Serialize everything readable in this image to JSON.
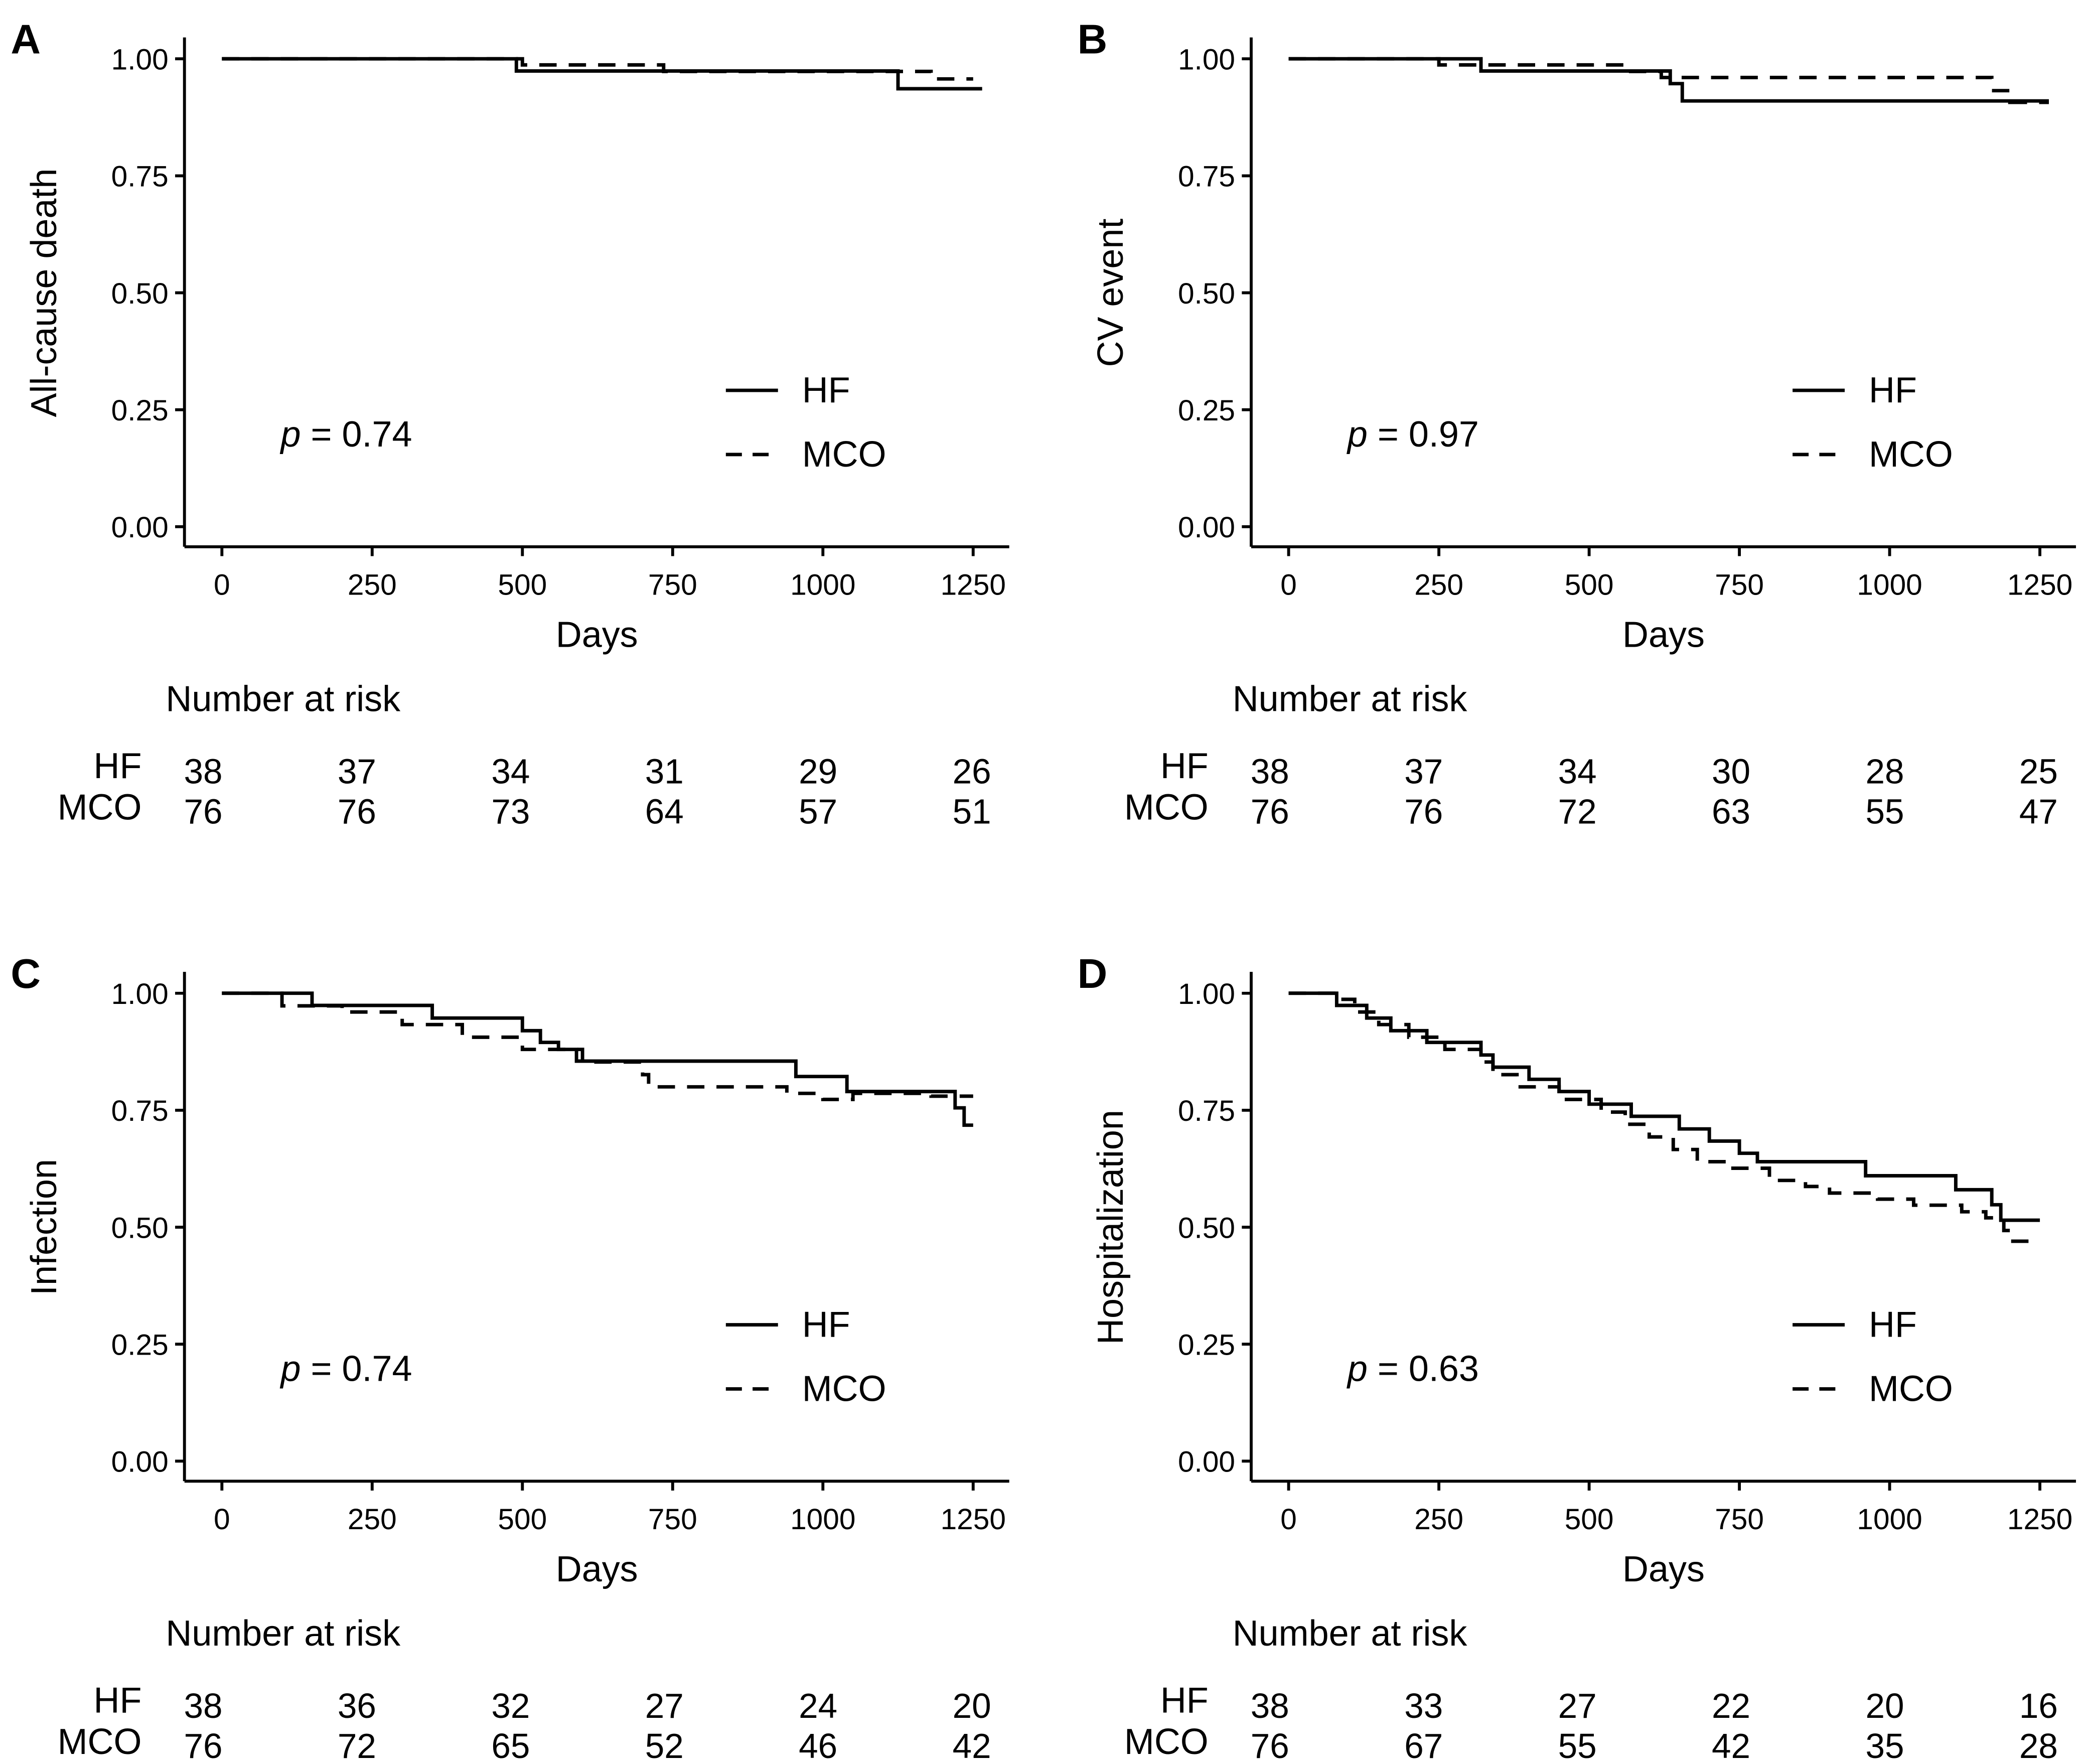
{
  "chart_data": [
    {
      "type": "line",
      "panel": "A",
      "ylabel": "All-cause death",
      "xlabel": "Days",
      "xlim": [
        0,
        1300
      ],
      "ylim": [
        0,
        1
      ],
      "x_ticks": [
        "0",
        "250",
        "500",
        "750",
        "1000",
        "1250"
      ],
      "y_ticks": [
        "0.00",
        "0.25",
        "0.50",
        "0.75",
        "1.00"
      ],
      "p_label": "p",
      "p_text": " = 0.74",
      "legend": [
        "HF",
        "MCO"
      ],
      "series": [
        {
          "name": "HF",
          "style": "solid",
          "points": [
            [
              0,
              1.0
            ],
            [
              490,
              1.0
            ],
            [
              490,
              0.974
            ],
            [
              1125,
              0.974
            ],
            [
              1125,
              0.936
            ],
            [
              1265,
              0.936
            ]
          ]
        },
        {
          "name": "MCO",
          "style": "dashed",
          "points": [
            [
              0,
              1.0
            ],
            [
              500,
              1.0
            ],
            [
              500,
              0.987
            ],
            [
              735,
              0.987
            ],
            [
              735,
              0.973
            ],
            [
              1180,
              0.973
            ],
            [
              1180,
              0.957
            ],
            [
              1250,
              0.957
            ]
          ]
        }
      ],
      "risk_table": {
        "title": "Number at risk",
        "rows": [
          {
            "label": "HF",
            "values": [
              "38",
              "37",
              "34",
              "31",
              "29",
              "26"
            ]
          },
          {
            "label": "MCO",
            "values": [
              "76",
              "76",
              "73",
              "64",
              "57",
              "51"
            ]
          }
        ]
      }
    },
    {
      "type": "line",
      "panel": "B",
      "ylabel": "CV event",
      "xlabel": "Days",
      "xlim": [
        0,
        1300
      ],
      "ylim": [
        0,
        1
      ],
      "x_ticks": [
        "0",
        "250",
        "500",
        "750",
        "1000",
        "1250"
      ],
      "y_ticks": [
        "0.00",
        "0.25",
        "0.50",
        "0.75",
        "1.00"
      ],
      "p_label": "p",
      "p_text": " = 0.97",
      "legend": [
        "HF",
        "MCO"
      ],
      "series": [
        {
          "name": "HF",
          "style": "solid",
          "points": [
            [
              0,
              1.0
            ],
            [
              320,
              1.0
            ],
            [
              320,
              0.974
            ],
            [
              635,
              0.974
            ],
            [
              635,
              0.947
            ],
            [
              655,
              0.947
            ],
            [
              655,
              0.91
            ],
            [
              1265,
              0.91
            ]
          ]
        },
        {
          "name": "MCO",
          "style": "dashed",
          "points": [
            [
              0,
              1.0
            ],
            [
              250,
              1.0
            ],
            [
              250,
              0.987
            ],
            [
              560,
              0.987
            ],
            [
              560,
              0.973
            ],
            [
              620,
              0.973
            ],
            [
              620,
              0.96
            ],
            [
              1170,
              0.96
            ],
            [
              1170,
              0.932
            ],
            [
              1200,
              0.932
            ],
            [
              1200,
              0.907
            ],
            [
              1265,
              0.907
            ]
          ]
        }
      ],
      "risk_table": {
        "title": "Number at risk",
        "rows": [
          {
            "label": "HF",
            "values": [
              "38",
              "37",
              "34",
              "30",
              "28",
              "25"
            ]
          },
          {
            "label": "MCO",
            "values": [
              "76",
              "76",
              "72",
              "63",
              "55",
              "47"
            ]
          }
        ]
      }
    },
    {
      "type": "line",
      "panel": "C",
      "ylabel": "Infection",
      "xlabel": "Days",
      "xlim": [
        0,
        1300
      ],
      "ylim": [
        0,
        1
      ],
      "x_ticks": [
        "0",
        "250",
        "500",
        "750",
        "1000",
        "1250"
      ],
      "y_ticks": [
        "0.00",
        "0.25",
        "0.50",
        "0.75",
        "1.00"
      ],
      "p_label": "p",
      "p_text": " = 0.74",
      "legend": [
        "HF",
        "MCO"
      ],
      "series": [
        {
          "name": "HF",
          "style": "solid",
          "points": [
            [
              0,
              1.0
            ],
            [
              150,
              1.0
            ],
            [
              150,
              0.974
            ],
            [
              350,
              0.974
            ],
            [
              350,
              0.947
            ],
            [
              500,
              0.947
            ],
            [
              500,
              0.92
            ],
            [
              530,
              0.92
            ],
            [
              530,
              0.895
            ],
            [
              560,
              0.895
            ],
            [
              560,
              0.88
            ],
            [
              590,
              0.88
            ],
            [
              590,
              0.855
            ],
            [
              955,
              0.855
            ],
            [
              955,
              0.822
            ],
            [
              1040,
              0.822
            ],
            [
              1040,
              0.79
            ],
            [
              1220,
              0.79
            ],
            [
              1220,
              0.755
            ],
            [
              1235,
              0.755
            ],
            [
              1235,
              0.718
            ],
            [
              1250,
              0.718
            ]
          ]
        },
        {
          "name": "MCO",
          "style": "dashed",
          "points": [
            [
              0,
              1.0
            ],
            [
              100,
              1.0
            ],
            [
              100,
              0.973
            ],
            [
              200,
              0.973
            ],
            [
              200,
              0.96
            ],
            [
              300,
              0.96
            ],
            [
              300,
              0.933
            ],
            [
              400,
              0.933
            ],
            [
              400,
              0.906
            ],
            [
              500,
              0.906
            ],
            [
              500,
              0.88
            ],
            [
              600,
              0.88
            ],
            [
              600,
              0.853
            ],
            [
              700,
              0.853
            ],
            [
              700,
              0.826
            ],
            [
              710,
              0.826
            ],
            [
              710,
              0.8
            ],
            [
              940,
              0.8
            ],
            [
              940,
              0.786
            ],
            [
              1000,
              0.786
            ],
            [
              1000,
              0.773
            ],
            [
              1050,
              0.773
            ],
            [
              1050,
              0.786
            ],
            [
              1180,
              0.786
            ],
            [
              1180,
              0.78
            ],
            [
              1250,
              0.78
            ]
          ]
        }
      ],
      "risk_table": {
        "title": "Number at risk",
        "rows": [
          {
            "label": "HF",
            "values": [
              "38",
              "36",
              "32",
              "27",
              "24",
              "20"
            ]
          },
          {
            "label": "MCO",
            "values": [
              "76",
              "72",
              "65",
              "52",
              "46",
              "42"
            ]
          }
        ]
      }
    },
    {
      "type": "line",
      "panel": "D",
      "ylabel": "Hospitalization",
      "xlabel": "Days",
      "xlim": [
        0,
        1300
      ],
      "ylim": [
        0,
        1
      ],
      "x_ticks": [
        "0",
        "250",
        "500",
        "750",
        "1000",
        "1250"
      ],
      "y_ticks": [
        "0.00",
        "0.25",
        "0.50",
        "0.75",
        "1.00"
      ],
      "p_label": "p",
      "p_text": " = 0.63",
      "legend": [
        "HF",
        "MCO"
      ],
      "series": [
        {
          "name": "HF",
          "style": "solid",
          "points": [
            [
              0,
              1.0
            ],
            [
              80,
              1.0
            ],
            [
              80,
              0.974
            ],
            [
              130,
              0.974
            ],
            [
              130,
              0.947
            ],
            [
              170,
              0.947
            ],
            [
              170,
              0.92
            ],
            [
              230,
              0.92
            ],
            [
              230,
              0.895
            ],
            [
              320,
              0.895
            ],
            [
              320,
              0.868
            ],
            [
              340,
              0.868
            ],
            [
              340,
              0.842
            ],
            [
              400,
              0.842
            ],
            [
              400,
              0.816
            ],
            [
              450,
              0.816
            ],
            [
              450,
              0.79
            ],
            [
              500,
              0.79
            ],
            [
              500,
              0.763
            ],
            [
              570,
              0.763
            ],
            [
              570,
              0.737
            ],
            [
              650,
              0.737
            ],
            [
              650,
              0.71
            ],
            [
              700,
              0.71
            ],
            [
              700,
              0.684
            ],
            [
              750,
              0.684
            ],
            [
              750,
              0.658
            ],
            [
              780,
              0.658
            ],
            [
              780,
              0.64
            ],
            [
              960,
              0.64
            ],
            [
              960,
              0.61
            ],
            [
              1110,
              0.61
            ],
            [
              1110,
              0.58
            ],
            [
              1170,
              0.58
            ],
            [
              1170,
              0.548
            ],
            [
              1185,
              0.548
            ],
            [
              1185,
              0.515
            ],
            [
              1250,
              0.515
            ]
          ]
        },
        {
          "name": "MCO",
          "style": "dashed",
          "points": [
            [
              0,
              1.0
            ],
            [
              80,
              1.0
            ],
            [
              80,
              0.987
            ],
            [
              110,
              0.987
            ],
            [
              110,
              0.96
            ],
            [
              150,
              0.96
            ],
            [
              150,
              0.933
            ],
            [
              200,
              0.933
            ],
            [
              200,
              0.906
            ],
            [
              260,
              0.906
            ],
            [
              260,
              0.88
            ],
            [
              320,
              0.88
            ],
            [
              320,
              0.853
            ],
            [
              340,
              0.853
            ],
            [
              340,
              0.826
            ],
            [
              380,
              0.826
            ],
            [
              380,
              0.8
            ],
            [
              450,
              0.8
            ],
            [
              450,
              0.773
            ],
            [
              520,
              0.773
            ],
            [
              520,
              0.746
            ],
            [
              560,
              0.746
            ],
            [
              560,
              0.72
            ],
            [
              600,
              0.72
            ],
            [
              600,
              0.693
            ],
            [
              640,
              0.693
            ],
            [
              640,
              0.666
            ],
            [
              680,
              0.666
            ],
            [
              680,
              0.64
            ],
            [
              730,
              0.64
            ],
            [
              730,
              0.626
            ],
            [
              800,
              0.626
            ],
            [
              800,
              0.6
            ],
            [
              860,
              0.6
            ],
            [
              860,
              0.587
            ],
            [
              900,
              0.587
            ],
            [
              900,
              0.573
            ],
            [
              980,
              0.573
            ],
            [
              980,
              0.56
            ],
            [
              1040,
              0.56
            ],
            [
              1040,
              0.547
            ],
            [
              1120,
              0.547
            ],
            [
              1120,
              0.533
            ],
            [
              1160,
              0.533
            ],
            [
              1160,
              0.52
            ],
            [
              1190,
              0.52
            ],
            [
              1190,
              0.493
            ],
            [
              1200,
              0.493
            ],
            [
              1200,
              0.47
            ],
            [
              1250,
              0.47
            ]
          ]
        }
      ],
      "risk_table": {
        "title": "Number at risk",
        "rows": [
          {
            "label": "HF",
            "values": [
              "38",
              "33",
              "27",
              "22",
              "20",
              "16"
            ]
          },
          {
            "label": "MCO",
            "values": [
              "76",
              "67",
              "55",
              "42",
              "35",
              "28"
            ]
          }
        ]
      }
    }
  ]
}
